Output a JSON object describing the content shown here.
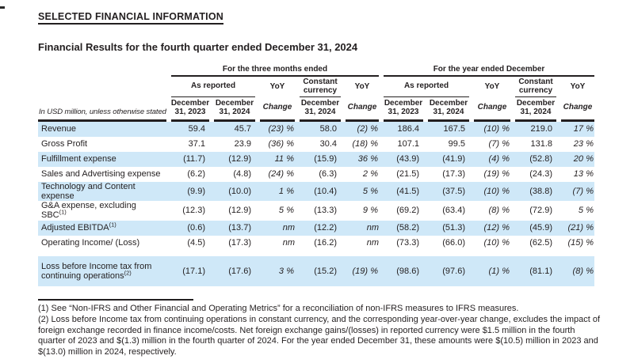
{
  "page": {
    "title": "SELECTED FINANCIAL INFORMATION",
    "subtitle": "Financial Results for the fourth quarter ended December 31, 2024"
  },
  "colors": {
    "stripe_blue": "#cfe8f8",
    "rule_dark": "#231f20"
  },
  "table": {
    "unit_note": "In USD million, unless otherwise stated",
    "header": {
      "three_months_group": "For the three months ended",
      "year_group": "For the year ended December",
      "as_reported": "As reported",
      "yoy": "YoY",
      "constant_currency": "Constant currency",
      "change": "Change",
      "dec_31_2023": "December 31, 2023",
      "dec_31_2024": "December 31, 2024"
    },
    "rows": [
      {
        "label": "Revenue",
        "shade": "blue",
        "cells": [
          {
            "v": "59.4"
          },
          {
            "v": "45.7"
          },
          {
            "v": "(23)",
            "p": "%"
          },
          {
            "v": "58.0"
          },
          {
            "v": "(2)",
            "p": "%"
          },
          {
            "v": "186.4"
          },
          {
            "v": "167.5"
          },
          {
            "v": "(10)",
            "p": "%"
          },
          {
            "v": "219.0"
          },
          {
            "v": "17",
            "p": "%"
          }
        ]
      },
      {
        "label": "Gross Profit",
        "shade": "white",
        "cells": [
          {
            "v": "37.1"
          },
          {
            "v": "23.9"
          },
          {
            "v": "(36)",
            "p": "%"
          },
          {
            "v": "30.4"
          },
          {
            "v": "(18)",
            "p": "%"
          },
          {
            "v": "107.1"
          },
          {
            "v": "99.5"
          },
          {
            "v": "(7)",
            "p": "%"
          },
          {
            "v": "131.8"
          },
          {
            "v": "23",
            "p": "%"
          }
        ]
      },
      {
        "label": "Fulfillment expense",
        "shade": "blue",
        "cells": [
          {
            "v": "(11.7)"
          },
          {
            "v": "(12.9)"
          },
          {
            "v": "11",
            "p": "%"
          },
          {
            "v": "(15.9)"
          },
          {
            "v": "36",
            "p": "%"
          },
          {
            "v": "(43.9)"
          },
          {
            "v": "(41.9)"
          },
          {
            "v": "(4)",
            "p": "%"
          },
          {
            "v": "(52.8)"
          },
          {
            "v": "20",
            "p": "%"
          }
        ]
      },
      {
        "label": "Sales and Advertising expense",
        "shade": "white",
        "cells": [
          {
            "v": "(6.2)"
          },
          {
            "v": "(4.8)"
          },
          {
            "v": "(24)",
            "p": "%"
          },
          {
            "v": "(6.3)"
          },
          {
            "v": "2",
            "p": "%"
          },
          {
            "v": "(21.5)"
          },
          {
            "v": "(17.3)"
          },
          {
            "v": "(19)",
            "p": "%"
          },
          {
            "v": "(24.3)"
          },
          {
            "v": "13",
            "p": "%"
          }
        ]
      },
      {
        "label": "Technology and Content",
        "label2": "expense",
        "shade": "blue",
        "cells": [
          {
            "v": "(9.9)"
          },
          {
            "v": "(10.0)"
          },
          {
            "v": "1",
            "p": "%"
          },
          {
            "v": "(10.4)"
          },
          {
            "v": "5",
            "p": "%"
          },
          {
            "v": "(41.5)"
          },
          {
            "v": "(37.5)"
          },
          {
            "v": "(10)",
            "p": "%"
          },
          {
            "v": "(38.8)"
          },
          {
            "v": "(7)",
            "p": "%"
          }
        ]
      },
      {
        "label": "G&A expense, excluding",
        "label2": "SBC",
        "sup": "(1)",
        "shade": "white",
        "cells": [
          {
            "v": "(12.3)"
          },
          {
            "v": "(12.9)"
          },
          {
            "v": "5",
            "p": "%"
          },
          {
            "v": "(13.3)"
          },
          {
            "v": "9",
            "p": "%"
          },
          {
            "v": "(69.2)"
          },
          {
            "v": "(63.4)"
          },
          {
            "v": "(8)",
            "p": "%"
          },
          {
            "v": "(72.9)"
          },
          {
            "v": "5",
            "p": "%"
          }
        ]
      },
      {
        "label": "Adjusted EBITDA",
        "sup": "(1)",
        "shade": "blue",
        "cells": [
          {
            "v": "(0.6)"
          },
          {
            "v": "(13.7)"
          },
          {
            "v": "nm"
          },
          {
            "v": "(12.2)"
          },
          {
            "v": "nm"
          },
          {
            "v": "(58.2)"
          },
          {
            "v": "(51.3)"
          },
          {
            "v": "(12)",
            "p": "%"
          },
          {
            "v": "(45.9)"
          },
          {
            "v": "(21)",
            "p": "%"
          }
        ]
      },
      {
        "label": "Operating Income/ (Loss)",
        "shade": "white",
        "cells": [
          {
            "v": "(4.5)"
          },
          {
            "v": "(17.3)"
          },
          {
            "v": "nm"
          },
          {
            "v": "(16.2)"
          },
          {
            "v": "nm"
          },
          {
            "v": "(73.3)"
          },
          {
            "v": "(66.0)"
          },
          {
            "v": "(10)",
            "p": "%"
          },
          {
            "v": "(62.5)"
          },
          {
            "v": "(15)",
            "p": "%"
          }
        ]
      },
      {
        "label": "Loss before Income tax from",
        "label2": "continuing operations",
        "sup": "(2)",
        "shade": "blue",
        "tall": true,
        "gap_before": true,
        "cells": [
          {
            "v": "(17.1)"
          },
          {
            "v": "(17.6)"
          },
          {
            "v": "3",
            "p": "%"
          },
          {
            "v": "(15.2)"
          },
          {
            "v": "(19)",
            "p": "%"
          },
          {
            "v": "(98.6)"
          },
          {
            "v": "(97.6)"
          },
          {
            "v": "(1)",
            "p": "%"
          },
          {
            "v": "(81.1)"
          },
          {
            "v": "(8)",
            "p": "%"
          }
        ]
      }
    ]
  },
  "footnotes": [
    "(1) See “Non-IFRS and Other Financial and Operating Metrics” for a reconciliation of non-IFRS measures to IFRS measures.",
    "(2) Loss before Income tax from continuing operations in constant currency, and the corresponding year-over-year change, excludes the impact of foreign exchange recorded in finance income/costs. Net foreign exchange gains/(losses) in reported currency were $1.5 million in the fourth quarter of 2023 and $(1.3) million in the fourth quarter of 2024. For the year ended December 31, these amounts were $(10.5) million in 2023 and $(13.0) million in 2024, respectively."
  ]
}
